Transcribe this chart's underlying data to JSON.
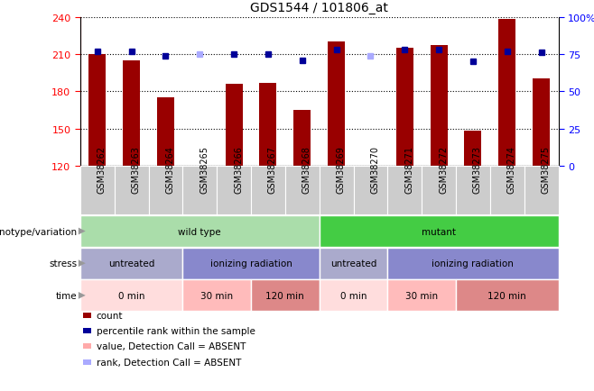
{
  "title": "GDS1544 / 101806_at",
  "samples": [
    "GSM38262",
    "GSM38263",
    "GSM38264",
    "GSM38265",
    "GSM38266",
    "GSM38267",
    "GSM38268",
    "GSM38269",
    "GSM38270",
    "GSM38271",
    "GSM38272",
    "GSM38273",
    "GSM38274",
    "GSM38275"
  ],
  "count_values": [
    210,
    205,
    175,
    120,
    186,
    187,
    165,
    220,
    120,
    215,
    217,
    148,
    238,
    190
  ],
  "count_absent": [
    false,
    false,
    false,
    true,
    false,
    false,
    false,
    false,
    true,
    false,
    false,
    false,
    false,
    false
  ],
  "percentile_values": [
    77,
    77,
    74,
    75,
    75,
    75,
    71,
    78,
    74,
    78,
    78,
    70,
    77,
    76
  ],
  "percentile_absent": [
    false,
    false,
    false,
    true,
    false,
    false,
    false,
    false,
    true,
    false,
    false,
    false,
    false,
    false
  ],
  "ylim_left": [
    120,
    240
  ],
  "ylim_right": [
    0,
    100
  ],
  "yticks_left": [
    120,
    150,
    180,
    210,
    240
  ],
  "yticks_right": [
    0,
    25,
    50,
    75,
    100
  ],
  "bar_color_present": "#990000",
  "bar_color_absent": "#ffaaaa",
  "dot_color_present": "#000099",
  "dot_color_absent": "#aaaaff",
  "background_color": "#ffffff",
  "plot_bg_color": "#ffffff",
  "xtick_bg_color": "#cccccc",
  "legend_items": [
    {
      "color": "#990000",
      "label": "count"
    },
    {
      "color": "#000099",
      "label": "percentile rank within the sample"
    },
    {
      "color": "#ffaaaa",
      "label": "value, Detection Call = ABSENT"
    },
    {
      "color": "#aaaaff",
      "label": "rank, Detection Call = ABSENT"
    }
  ],
  "genotype_groups": [
    {
      "label": "wild type",
      "start": 0,
      "end": 7,
      "color": "#aaddaa"
    },
    {
      "label": "mutant",
      "start": 7,
      "end": 14,
      "color": "#44cc44"
    }
  ],
  "stress_groups": [
    {
      "label": "untreated",
      "start": 0,
      "end": 3,
      "color": "#aaaacc"
    },
    {
      "label": "ionizing radiation",
      "start": 3,
      "end": 7,
      "color": "#8888cc"
    },
    {
      "label": "untreated",
      "start": 7,
      "end": 9,
      "color": "#aaaacc"
    },
    {
      "label": "ionizing radiation",
      "start": 9,
      "end": 14,
      "color": "#8888cc"
    }
  ],
  "time_groups": [
    {
      "label": "0 min",
      "start": 0,
      "end": 3,
      "color": "#ffdddd"
    },
    {
      "label": "30 min",
      "start": 3,
      "end": 5,
      "color": "#ffbbbb"
    },
    {
      "label": "120 min",
      "start": 5,
      "end": 7,
      "color": "#dd8888"
    },
    {
      "label": "0 min",
      "start": 7,
      "end": 9,
      "color": "#ffdddd"
    },
    {
      "label": "30 min",
      "start": 9,
      "end": 11,
      "color": "#ffbbbb"
    },
    {
      "label": "120 min",
      "start": 11,
      "end": 14,
      "color": "#dd8888"
    }
  ],
  "row_labels": [
    "genotype/variation",
    "stress",
    "time"
  ]
}
